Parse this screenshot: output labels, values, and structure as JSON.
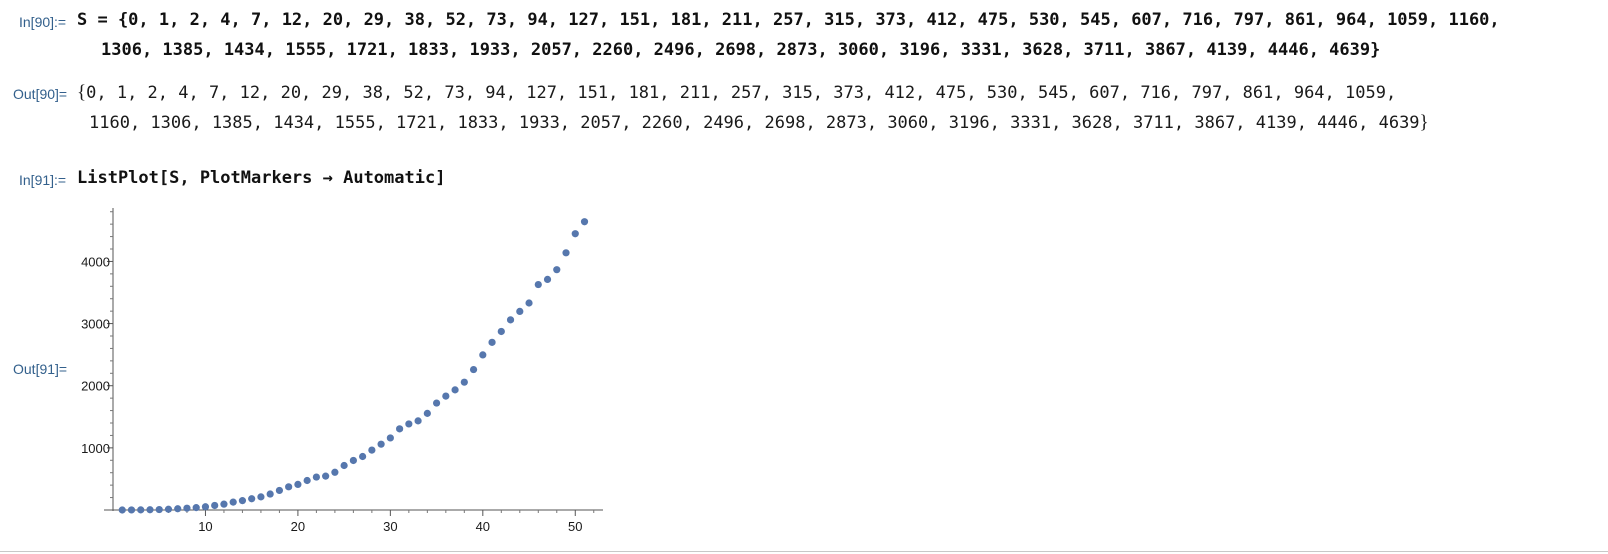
{
  "cells": [
    {
      "label": "In[90]:=",
      "lines": [
        "S = {0, 1, 2, 4, 7, 12, 20, 29, 38, 52, 73, 94, 127, 151, 181, 211, 257, 315, 373, 412, 475, 530, 545, 607, 716, 797, 861, 964, 1059, 1160,",
        "1306, 1385, 1434, 1555, 1721, 1833, 1933, 2057, 2260, 2496, 2698, 2873, 3060, 3196, 3331, 3628, 3711, 3867, 4139, 4446, 4639}"
      ]
    },
    {
      "label": "Out[90]=",
      "open_brace": "{",
      "lines": [
        "0, 1, 2, 4, 7, 12, 20, 29, 38, 52, 73, 94, 127, 151, 181, 211, 257, 315, 373, 412, 475, 530, 545, 607, 716, 797, 861, 964, 1059,",
        "1160, 1306, 1385, 1434, 1555, 1721, 1833, 1933, 2057, 2260, 2496, 2698, 2873, 3060, 3196, 3331, 3628, 3711, 3867, 4139, 4446, 4639"
      ],
      "close_brace": "}"
    },
    {
      "label": "In[91]:=",
      "lines": [
        "ListPlot[S, PlotMarkers → Automatic]"
      ]
    },
    {
      "label": "Out[91]="
    }
  ],
  "colors": {
    "label": "#33608c",
    "marker": "#5677ad"
  },
  "chart_data": {
    "type": "scatter",
    "x": [
      1,
      2,
      3,
      4,
      5,
      6,
      7,
      8,
      9,
      10,
      11,
      12,
      13,
      14,
      15,
      16,
      17,
      18,
      19,
      20,
      21,
      22,
      23,
      24,
      25,
      26,
      27,
      28,
      29,
      30,
      31,
      32,
      33,
      34,
      35,
      36,
      37,
      38,
      39,
      40,
      41,
      42,
      43,
      44,
      45,
      46,
      47,
      48,
      49,
      50,
      51
    ],
    "y": [
      0,
      1,
      2,
      4,
      7,
      12,
      20,
      29,
      38,
      52,
      73,
      94,
      127,
      151,
      181,
      211,
      257,
      315,
      373,
      412,
      475,
      530,
      545,
      607,
      716,
      797,
      861,
      964,
      1059,
      1160,
      1306,
      1385,
      1434,
      1555,
      1721,
      1833,
      1933,
      2057,
      2260,
      2496,
      2698,
      2873,
      3060,
      3196,
      3331,
      3628,
      3711,
      3867,
      4139,
      4446,
      4639
    ],
    "xticks": [
      10,
      20,
      30,
      40,
      50
    ],
    "yticks": [
      1000,
      2000,
      3000,
      4000
    ],
    "xtick_labels": [
      "10",
      "20",
      "30",
      "40",
      "50"
    ],
    "ytick_labels": [
      "1000",
      "2000",
      "3000",
      "4000"
    ],
    "xlim": [
      0,
      53
    ],
    "ylim": [
      0,
      4860
    ],
    "title": "",
    "xlabel": "",
    "ylabel": "",
    "grid": false
  }
}
